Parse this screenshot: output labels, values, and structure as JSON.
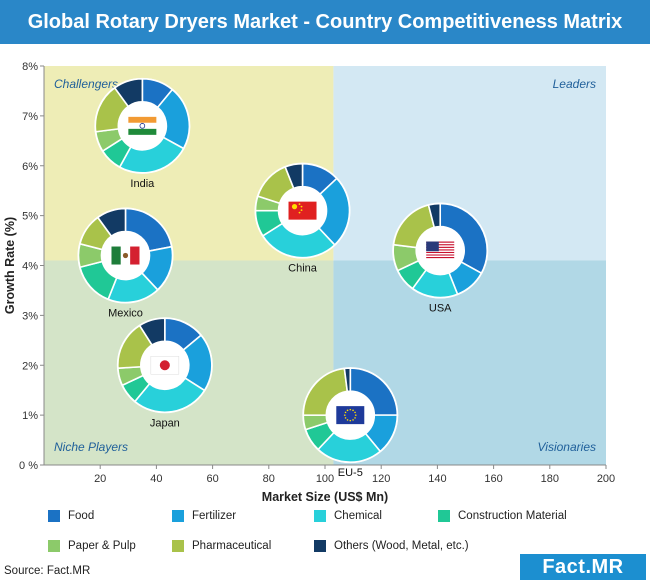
{
  "header": {
    "title": "Global Rotary Dryers Market - Country Competitiveness Matrix"
  },
  "chart_data": {
    "type": "scatter",
    "subtype": "bubble-donut-matrix",
    "title": "Global Rotary Dryers Market - Country Competitiveness Matrix",
    "xlabel": "Market Size (US$ Mn)",
    "ylabel": "Growth Rate (%)",
    "xlim": [
      0,
      200
    ],
    "ylim": [
      0,
      8
    ],
    "x_ticks": [
      20,
      40,
      60,
      80,
      100,
      120,
      140,
      160,
      180,
      200
    ],
    "x_tick_labels": [
      "20",
      "40",
      "60",
      "80",
      "100",
      "120",
      "140",
      "160",
      "180",
      "200"
    ],
    "y_ticks": [
      0,
      1,
      2,
      3,
      4,
      5,
      6,
      7,
      8
    ],
    "y_tick_labels": [
      "0 %",
      "1%",
      "2%",
      "3%",
      "4%",
      "5%",
      "6%",
      "7%",
      "8%"
    ],
    "divider_x": 103,
    "divider_y": 4.1,
    "quadrants": [
      {
        "label": "Challengers",
        "position": "top-left",
        "color": "#eeedb6"
      },
      {
        "label": "Leaders",
        "position": "top-right",
        "color": "#d3e8f3"
      },
      {
        "label": "Niche Players",
        "position": "bottom-left",
        "color": "#d4e4c8"
      },
      {
        "label": "Visionaries",
        "position": "bottom-right",
        "color": "#b1d8e6"
      }
    ],
    "segments": [
      {
        "name": "Food",
        "color": "#1b72c4"
      },
      {
        "name": "Fertilizer",
        "color": "#1aa0dc"
      },
      {
        "name": "Chemical",
        "color": "#28d0da"
      },
      {
        "name": "Construction Material",
        "color": "#20c896"
      },
      {
        "name": "Paper & Pulp",
        "color": "#8cca6a"
      },
      {
        "name": "Pharmaceutical",
        "color": "#a9c24a"
      },
      {
        "name": "Others (Wood, Metal, etc.)",
        "color": "#123a64"
      }
    ],
    "points": [
      {
        "country": "India",
        "flag": "india",
        "x": 35,
        "y": 6.8,
        "shares": [
          11,
          22,
          25,
          8,
          7,
          17,
          10
        ]
      },
      {
        "country": "China",
        "flag": "china",
        "x": 92,
        "y": 5.1,
        "shares": [
          13,
          25,
          28,
          9,
          5,
          14,
          6
        ]
      },
      {
        "country": "Mexico",
        "flag": "mexico",
        "x": 29,
        "y": 4.2,
        "shares": [
          22,
          16,
          18,
          15,
          8,
          11,
          10
        ]
      },
      {
        "country": "USA",
        "flag": "usa",
        "x": 141,
        "y": 4.3,
        "shares": [
          33,
          11,
          16,
          8,
          9,
          19,
          4
        ]
      },
      {
        "country": "Japan",
        "flag": "japan",
        "x": 43,
        "y": 2.0,
        "shares": [
          14,
          20,
          27,
          7,
          6,
          17,
          9
        ]
      },
      {
        "country": "EU-5",
        "flag": "eu",
        "x": 109,
        "y": 1.0,
        "shares": [
          25,
          14,
          23,
          8,
          5,
          23,
          2
        ]
      }
    ]
  },
  "legend": {
    "items": [
      {
        "label": "Food",
        "color": "#1b72c4"
      },
      {
        "label": "Fertilizer",
        "color": "#1aa0dc"
      },
      {
        "label": "Chemical",
        "color": "#28d0da"
      },
      {
        "label": "Construction Material",
        "color": "#20c896"
      },
      {
        "label": "Paper & Pulp",
        "color": "#8cca6a"
      },
      {
        "label": "Pharmaceutical",
        "color": "#a9c24a"
      },
      {
        "label": "Others (Wood, Metal, etc.)",
        "color": "#123a64"
      }
    ]
  },
  "footer": {
    "source": "Source: Fact.MR",
    "logo_text": "Fact.MR"
  }
}
